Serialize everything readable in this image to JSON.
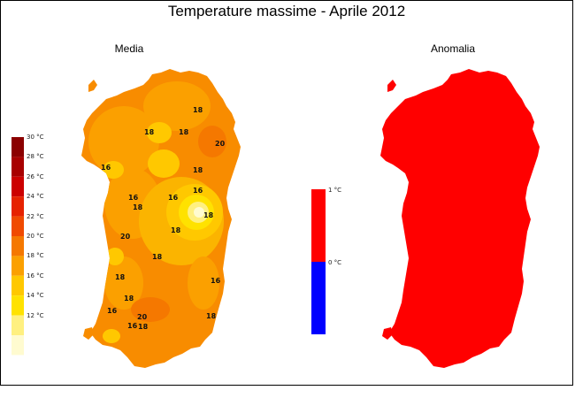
{
  "title": "Temperature massime - Aprile 2012",
  "left_map": {
    "subtitle": "Media",
    "legend": [
      {
        "label": "30 °C",
        "color": "#8b0000"
      },
      {
        "label": "28 °C",
        "color": "#a80000"
      },
      {
        "label": "26 °C",
        "color": "#cc0000"
      },
      {
        "label": "24 °C",
        "color": "#e62200"
      },
      {
        "label": "22 °C",
        "color": "#f04a00"
      },
      {
        "label": "20 °C",
        "color": "#f57800"
      },
      {
        "label": "18 °C",
        "color": "#fba000"
      },
      {
        "label": "16 °C",
        "color": "#ffc800"
      },
      {
        "label": "14 °C",
        "color": "#ffe200"
      },
      {
        "label": "12 °C",
        "color": "#fff080"
      },
      {
        "label": "",
        "color": "#fffbd0"
      }
    ],
    "contour_labels": [
      "18",
      "18",
      "18",
      "20",
      "16",
      "18",
      "16",
      "18",
      "16",
      "18",
      "18",
      "20",
      "18",
      "18",
      "16",
      "16",
      "18",
      "16",
      "20",
      "18",
      "18",
      "16"
    ]
  },
  "right_map": {
    "subtitle": "Anomalia",
    "legend": [
      {
        "label": "1 °C",
        "color": "#ff0000"
      },
      {
        "label": "0 °C",
        "color": "#0000ff"
      }
    ],
    "fill_color": "#ff0000"
  }
}
